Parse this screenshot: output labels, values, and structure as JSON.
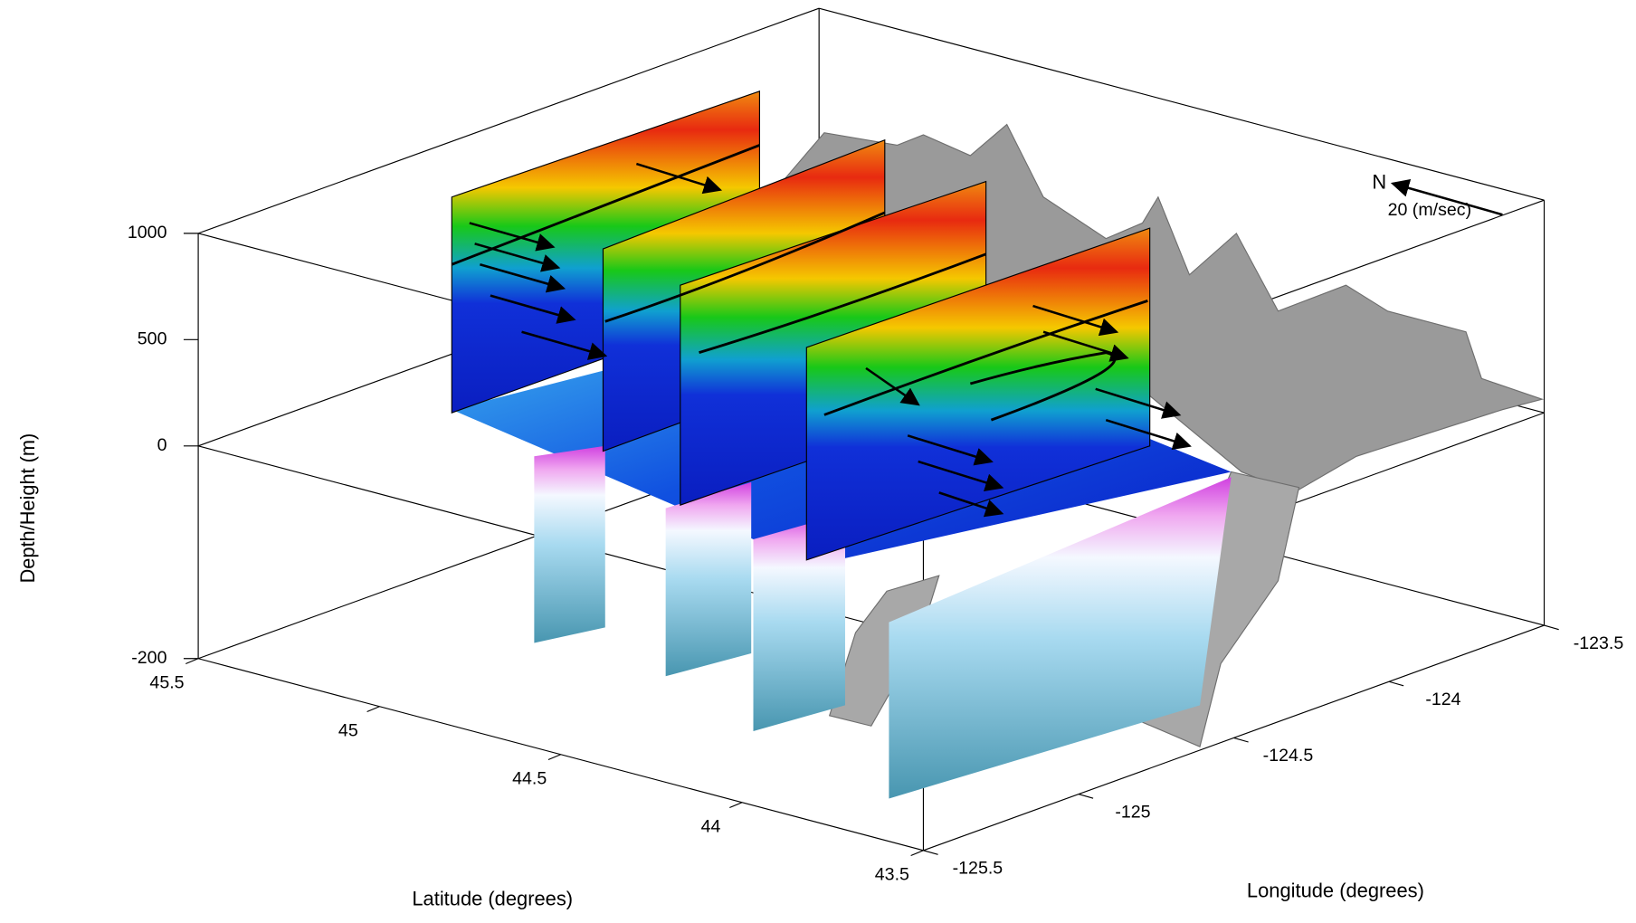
{
  "chart_data": {
    "type": "3d-section",
    "zlabel": "Depth/Height (m)",
    "xlabel": "Latitude (degrees)",
    "ylabel": "Longitude (degrees)",
    "xlim": [
      45.5,
      43.5
    ],
    "xticks": [
      45.5,
      45,
      44.5,
      44,
      43.5
    ],
    "ylim": [
      -125.5,
      -123.5
    ],
    "yticks": [
      -125.5,
      -125,
      -124.5,
      -124,
      -123.5
    ],
    "zlim": [
      -200,
      1000
    ],
    "zticks": [
      -200,
      0,
      500,
      1000
    ],
    "annotations": [
      "N",
      "20 (m/sec)"
    ]
  }
}
